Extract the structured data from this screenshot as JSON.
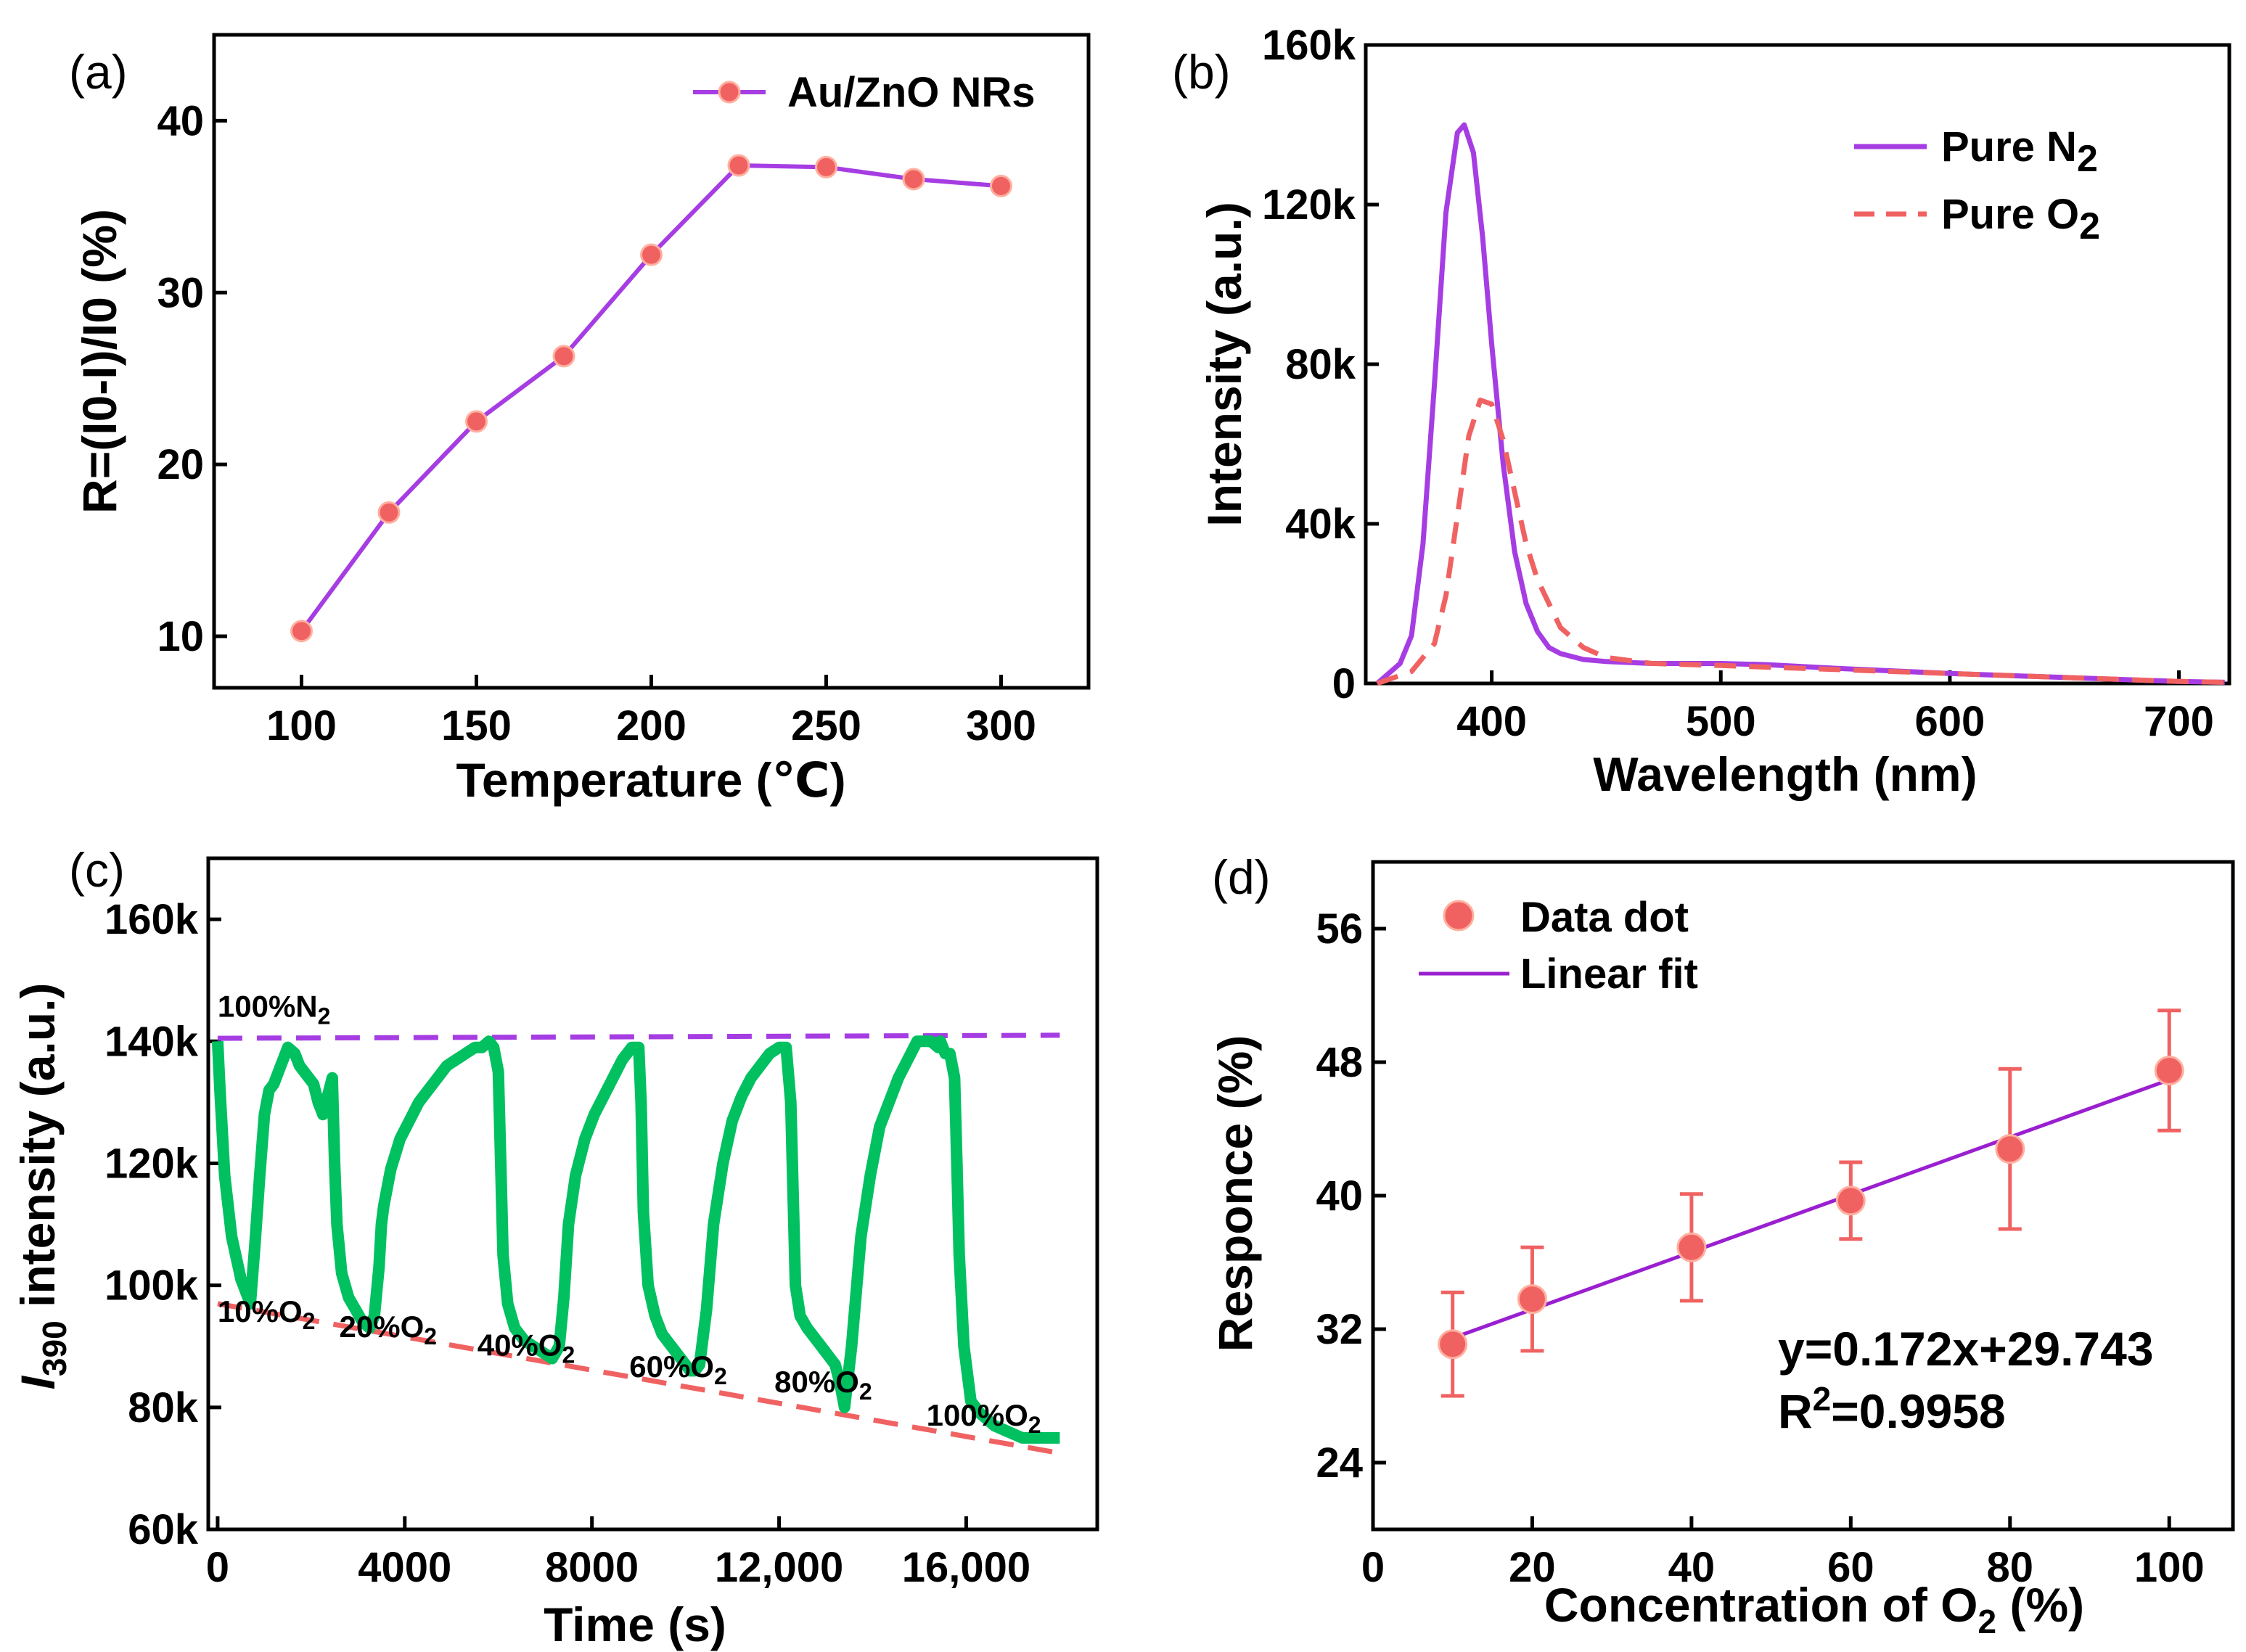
{
  "chart_data": [
    {
      "id": "a",
      "type": "line",
      "panel_label": "(a)",
      "x": [
        100,
        125,
        150,
        175,
        200,
        225,
        250,
        275,
        300
      ],
      "series": [
        {
          "name": "Au/ZnO NRs",
          "values": [
            10.3,
            17.2,
            22.5,
            26.3,
            32.2,
            37.4,
            37.3,
            36.6,
            36.2
          ],
          "color": "#a63de3",
          "marker_color": "#f06262"
        }
      ],
      "xlabel": "Temperature (℃)",
      "ylabel": "R=(I0-I)/I0 (%)",
      "xlim": [
        75,
        325
      ],
      "ylim": [
        7,
        45
      ],
      "xticks": [
        100,
        150,
        200,
        250,
        300
      ],
      "xtick_labels": [
        "100",
        "150",
        "200",
        "250",
        "300"
      ],
      "yticks": [
        10,
        20,
        30,
        40
      ],
      "ytick_labels": [
        "10",
        "20",
        "30",
        "40"
      ],
      "legend": {
        "label": "Au/ZnO NRs",
        "position": "top-right"
      }
    },
    {
      "id": "b",
      "type": "line",
      "panel_label": "(b)",
      "series": [
        {
          "name": "Pure N2",
          "style": "solid",
          "color": "#a63de3",
          "x": [
            350,
            360,
            365,
            370,
            375,
            380,
            385,
            388,
            392,
            396,
            400,
            405,
            410,
            415,
            420,
            425,
            430,
            440,
            450,
            470,
            500,
            520,
            550,
            600,
            650,
            700,
            720
          ],
          "values": [
            0,
            5000,
            12000,
            35000,
            75000,
            118000,
            138000,
            140000,
            133000,
            112000,
            85000,
            55000,
            33000,
            20000,
            13000,
            9000,
            7500,
            6000,
            5500,
            5000,
            5000,
            4700,
            3800,
            2500,
            1500,
            500,
            300
          ]
        },
        {
          "name": "Pure O2",
          "style": "dashed",
          "color": "#f06262",
          "x": [
            350,
            365,
            375,
            380,
            385,
            390,
            395,
            400,
            405,
            410,
            415,
            420,
            430,
            440,
            450,
            470,
            500,
            550,
            600,
            650,
            700,
            720
          ],
          "values": [
            0,
            3000,
            10000,
            22000,
            42000,
            62000,
            71000,
            70000,
            61000,
            48000,
            35000,
            26000,
            14000,
            9000,
            6500,
            5000,
            4500,
            3500,
            2500,
            1500,
            500,
            300
          ]
        }
      ],
      "xlabel": "Wavelength (nm)",
      "ylabel": "Intensity (a.u.)",
      "xlim": [
        345,
        722
      ],
      "ylim": [
        0,
        160000
      ],
      "xticks": [
        400,
        500,
        600,
        700
      ],
      "xtick_labels": [
        "400",
        "500",
        "600",
        "700"
      ],
      "yticks": [
        0,
        40000,
        80000,
        120000,
        160000
      ],
      "ytick_labels": [
        "0",
        "40k",
        "80k",
        "120k",
        "160k"
      ],
      "legend": {
        "entries": [
          "Pure N",
          "Pure O"
        ],
        "subscript": "2",
        "position": "top-right"
      }
    },
    {
      "id": "c",
      "type": "line",
      "panel_label": "(c)",
      "series": [
        {
          "name": "I390 intensity",
          "color": "#00c060",
          "x": [
            0,
            50,
            150,
            300,
            500,
            650,
            700,
            720,
            800,
            900,
            1000,
            1100,
            1200,
            1350,
            1500,
            1650,
            1750,
            1850,
            1950,
            2050,
            2150,
            2250,
            2350,
            2450,
            2500,
            2550,
            2650,
            2800,
            2950,
            3100,
            3250,
            3350,
            3450,
            3500,
            3550,
            3700,
            3900,
            4100,
            4300,
            4500,
            4700,
            4900,
            5100,
            5300,
            5500,
            5650,
            5800,
            5900,
            6000,
            6050,
            6100,
            6200,
            6350,
            6550,
            6750,
            6950,
            7150,
            7300,
            7400,
            7500,
            7650,
            7850,
            8050,
            8250,
            8450,
            8650,
            8850,
            9000,
            9050,
            9100,
            9200,
            9350,
            9500,
            9700,
            9900,
            10100,
            10200,
            10300,
            10450,
            10600,
            10800,
            11000,
            11200,
            11400,
            11600,
            11800,
            12000,
            12150,
            12250,
            12300,
            12350,
            12450,
            12600,
            12800,
            13000,
            13200,
            13300,
            13400,
            13550,
            13750,
            13950,
            14150,
            14350,
            14550,
            14750,
            14950,
            15100,
            15250,
            15400,
            15450,
            15550,
            15650,
            15750,
            15800,
            15850,
            15950,
            16100,
            16300,
            16600,
            16900,
            17200,
            17500,
            17800,
            18000
          ],
          "values": [
            140000,
            132000,
            118000,
            108000,
            101000,
            98000,
            97000,
            99000,
            107000,
            118000,
            128000,
            132000,
            133000,
            136000,
            139000,
            138000,
            136000,
            135000,
            134000,
            133000,
            130000,
            128000,
            131000,
            134000,
            120000,
            110000,
            102000,
            98000,
            96000,
            94000,
            93000,
            95000,
            103000,
            110000,
            113000,
            119000,
            124000,
            127000,
            130000,
            132000,
            134000,
            136000,
            137000,
            138000,
            139000,
            139000,
            140000,
            139000,
            135000,
            120000,
            105000,
            97000,
            93000,
            91000,
            90000,
            89000,
            88000,
            90000,
            98000,
            110000,
            118000,
            124000,
            128000,
            131000,
            134000,
            137000,
            139000,
            139000,
            130000,
            112000,
            100000,
            95000,
            92000,
            90000,
            88000,
            86000,
            86000,
            87000,
            96000,
            110000,
            120000,
            127000,
            131000,
            134000,
            136000,
            138000,
            139000,
            139000,
            130000,
            115000,
            100000,
            95000,
            93000,
            91000,
            89000,
            87000,
            84000,
            80000,
            90000,
            108000,
            118000,
            126000,
            130000,
            134000,
            137000,
            140000,
            140000,
            140000,
            139000,
            140000,
            138000,
            138000,
            134000,
            120000,
            105000,
            90000,
            81000,
            79000,
            77000,
            76000,
            75000,
            75000,
            75000,
            75000
          ]
        }
      ],
      "guides": [
        {
          "name": "100%N2 level",
          "style": "dashed",
          "color": "#a63de3",
          "x": [
            0,
            18000
          ],
          "values": [
            140500,
            141000
          ]
        },
        {
          "name": "minima trend",
          "style": "dashed",
          "color": "#f06262",
          "x": [
            0,
            18000
          ],
          "values": [
            97000,
            72500
          ]
        }
      ],
      "annotations": [
        {
          "text": "100%N",
          "sub": "2",
          "x": 0,
          "y": 144000
        },
        {
          "text": "10%O",
          "sub": "2",
          "x": 0,
          "y": 94000
        },
        {
          "text": "20%O",
          "sub": "2",
          "x": 2600,
          "y": 91500
        },
        {
          "text": "40%O",
          "sub": "2",
          "x": 5550,
          "y": 88500
        },
        {
          "text": "60%O",
          "sub": "2",
          "x": 8800,
          "y": 85000
        },
        {
          "text": "80%O",
          "sub": "2",
          "x": 11900,
          "y": 82500
        },
        {
          "text": "100%O",
          "sub": "2",
          "x": 15150,
          "y": 77000
        }
      ],
      "xlabel": "Time (s)",
      "ylabel": "I390 intensity (a.u.)",
      "ylabel_main": "I",
      "ylabel_sub": "390",
      "ylabel_rest": " intensity (a.u.)",
      "xlim": [
        -200,
        18800
      ],
      "ylim": [
        60000,
        170000
      ],
      "xticks": [
        0,
        4000,
        8000,
        12000,
        16000
      ],
      "xtick_labels": [
        "0",
        "4000",
        "8000",
        "12,000",
        "16,000"
      ],
      "yticks": [
        60000,
        80000,
        100000,
        120000,
        140000,
        160000
      ],
      "ytick_labels": [
        "60k",
        "80k",
        "100k",
        "120k",
        "140k",
        "160k"
      ]
    },
    {
      "id": "d",
      "type": "scatter",
      "panel_label": "(d)",
      "x": [
        10,
        20,
        40,
        60,
        80,
        100
      ],
      "series": [
        {
          "name": "Data dot",
          "values": [
            31.1,
            33.8,
            36.9,
            39.7,
            42.8,
            47.5
          ],
          "errors": [
            3.1,
            3.1,
            3.2,
            2.3,
            4.8,
            3.6
          ],
          "color": "#f06262"
        }
      ],
      "fit": {
        "name": "Linear fit",
        "slope": 0.172,
        "intercept": 29.743,
        "x_range": [
          10,
          100
        ],
        "color": "#9a1fd0"
      },
      "equation": "y=0.172x+29.743",
      "r2_prefix": "R",
      "r2_sup": "2",
      "r2_value": "=0.9958",
      "xlabel_main": "Concentration of O",
      "xlabel_sub": "2",
      "xlabel_rest": " (%)",
      "ylabel": "Responce (%)",
      "xlim": [
        0,
        108
      ],
      "ylim": [
        20,
        60
      ],
      "xticks": [
        0,
        20,
        40,
        60,
        80,
        100
      ],
      "xtick_labels": [
        "0",
        "20",
        "40",
        "60",
        "80",
        "100"
      ],
      "yticks": [
        24,
        32,
        40,
        48,
        56
      ],
      "ytick_labels": [
        "24",
        "32",
        "40",
        "48",
        "56"
      ],
      "legend": {
        "entries": [
          "Data dot",
          "Linear fit"
        ],
        "position": "top-left"
      }
    }
  ]
}
